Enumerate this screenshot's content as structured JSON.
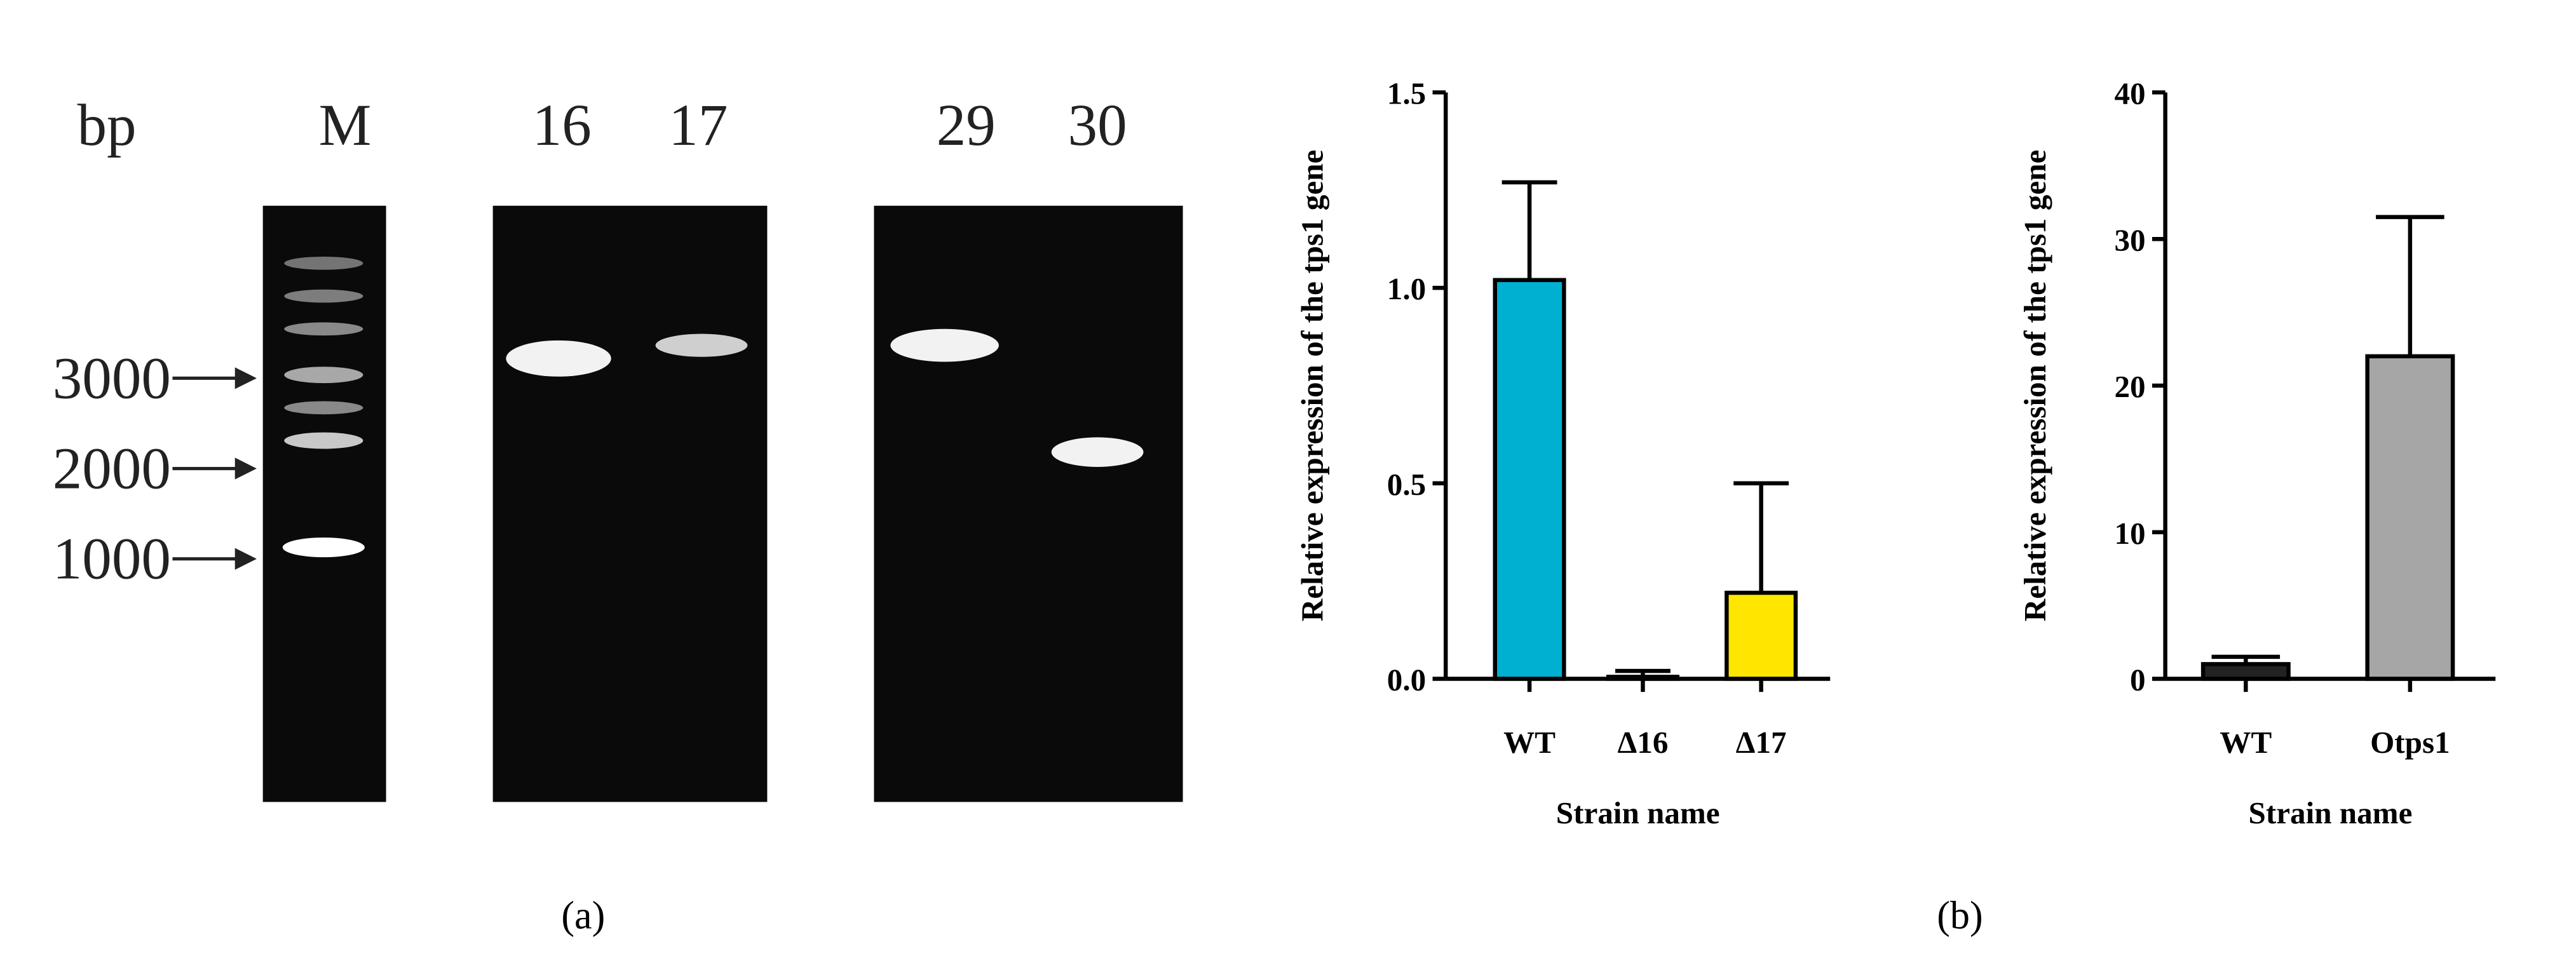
{
  "gel": {
    "size_header": "bp",
    "lanes": [
      "M",
      "16",
      "17",
      "29",
      "30"
    ],
    "markers": [
      "3000",
      "2000",
      "1000"
    ]
  },
  "panel_labels": [
    "(a)",
    "(b)"
  ],
  "chart_data": [
    {
      "type": "bar",
      "ylabel": "Relative expression of the tps1 gene",
      "xlabel": "Strain name",
      "categories": [
        "WT",
        "Δ16",
        "Δ17"
      ],
      "values": [
        1.02,
        0.005,
        0.22
      ],
      "errors": [
        0.25,
        0.015,
        0.28
      ],
      "colors": [
        "#00b0d0",
        "#111111",
        "#ffe600"
      ],
      "ylim": [
        0,
        1.5
      ],
      "yticks": [
        {
          "value": 0,
          "label": "0.0"
        },
        {
          "value": 0.5,
          "label": "0.5"
        },
        {
          "value": 1,
          "label": "1.0"
        },
        {
          "value": 1.5,
          "label": "1.5"
        }
      ]
    },
    {
      "type": "bar",
      "ylabel": "Relative expression of the tps1 gene",
      "xlabel": "Strain name",
      "categories": [
        "WT",
        "Otps1"
      ],
      "values": [
        1.0,
        22
      ],
      "errors": [
        0.5,
        9.5
      ],
      "colors": [
        "#222222",
        "#a6a6a6"
      ],
      "ylim": [
        0,
        40
      ],
      "yticks": [
        0,
        10,
        20,
        30,
        40
      ]
    }
  ]
}
